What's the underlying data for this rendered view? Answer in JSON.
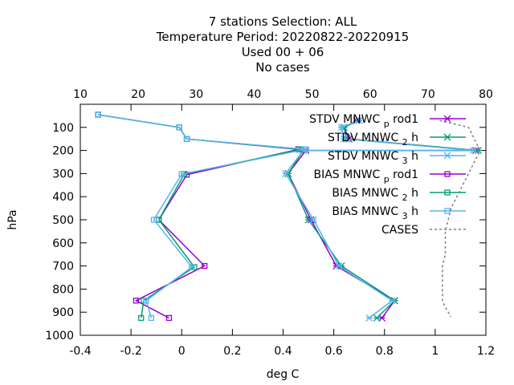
{
  "chart_data": {
    "type": "line",
    "title_lines": [
      "7 stations Selection: ALL",
      "Temperature  Period: 20220822-20220915",
      "Used  00 + 06",
      "No cases"
    ],
    "xlabel": "deg C",
    "ylabel": "hPa",
    "xlim": [
      -0.4,
      1.2
    ],
    "ylim": [
      1000,
      0
    ],
    "x_ticks": [
      "-0.4",
      "-0.2",
      "0",
      "0.2",
      "0.4",
      "0.6",
      "0.8",
      "1",
      "1.2"
    ],
    "y_ticks": [
      "100",
      "200",
      "300",
      "400",
      "500",
      "600",
      "700",
      "800",
      "900",
      "1000"
    ],
    "x2_ticks": [
      "10",
      "20",
      "30",
      "40",
      "50",
      "60",
      "70",
      "80"
    ],
    "x2lim": [
      10,
      80
    ],
    "grid": false,
    "legend_position": "top-right",
    "series": [
      {
        "name": "STDV MNWC_p_rod1",
        "legend_main": "STDV MNWC",
        "legend_sub": "p",
        "legend_tail": "rod1",
        "color": "#9400d3",
        "marker": "asterisk",
        "points": [
          [
            0.69,
            70
          ],
          [
            0.64,
            100
          ],
          [
            0.66,
            150
          ],
          [
            1.16,
            200
          ],
          [
            0.49,
            200
          ],
          [
            0.42,
            300
          ],
          [
            0.51,
            500
          ],
          [
            0.61,
            700
          ],
          [
            0.84,
            850
          ],
          [
            0.79,
            925
          ]
        ]
      },
      {
        "name": "STDV MNWC_2_h",
        "legend_main": "STDV MNWC",
        "legend_sub": "2",
        "legend_tail": "h",
        "color": "#009e73",
        "marker": "asterisk",
        "points": [
          [
            0.7,
            70
          ],
          [
            0.64,
            100
          ],
          [
            0.65,
            150
          ],
          [
            1.17,
            200
          ],
          [
            0.48,
            200
          ],
          [
            0.42,
            300
          ],
          [
            0.5,
            500
          ],
          [
            0.63,
            700
          ],
          [
            0.84,
            850
          ],
          [
            0.77,
            925
          ]
        ]
      },
      {
        "name": "STDV MNWC_3_h",
        "legend_main": "STDV MNWC",
        "legend_sub": "3",
        "legend_tail": "h",
        "color": "#56b4e9",
        "marker": "asterisk",
        "points": [
          [
            0.7,
            70
          ],
          [
            0.63,
            100
          ],
          [
            0.64,
            150
          ],
          [
            1.15,
            200
          ],
          [
            0.48,
            200
          ],
          [
            0.41,
            300
          ],
          [
            0.52,
            500
          ],
          [
            0.62,
            700
          ],
          [
            0.83,
            850
          ],
          [
            0.74,
            925
          ]
        ]
      },
      {
        "name": "BIAS MNWC_p_rod1",
        "legend_main": "BIAS MNWC",
        "legend_sub": "p",
        "legend_tail": "rod1",
        "color": "#9400d3",
        "marker": "square",
        "points": [
          [
            -0.33,
            45
          ],
          [
            -0.01,
            100
          ],
          [
            0.02,
            150
          ],
          [
            0.46,
            195
          ],
          [
            0.02,
            305
          ],
          [
            -0.09,
            500
          ],
          [
            0.09,
            700
          ],
          [
            -0.18,
            850
          ],
          [
            -0.05,
            925
          ]
        ]
      },
      {
        "name": "BIAS MNWC_2_h",
        "legend_main": "BIAS MNWC",
        "legend_sub": "2",
        "legend_tail": "h",
        "color": "#009e73",
        "marker": "square",
        "points": [
          [
            -0.33,
            45
          ],
          [
            -0.01,
            100
          ],
          [
            0.02,
            150
          ],
          [
            0.47,
            195
          ],
          [
            0.01,
            302
          ],
          [
            -0.09,
            500
          ],
          [
            0.05,
            705
          ],
          [
            -0.15,
            850
          ],
          [
            -0.16,
            925
          ]
        ]
      },
      {
        "name": "BIAS MNWC_3_h",
        "legend_main": "BIAS MNWC",
        "legend_sub": "3",
        "legend_tail": "h",
        "color": "#56b4e9",
        "marker": "square",
        "points": [
          [
            -0.33,
            45
          ],
          [
            -0.01,
            100
          ],
          [
            0.02,
            150
          ],
          [
            0.49,
            195
          ],
          [
            0.0,
            302
          ],
          [
            -0.11,
            500
          ],
          [
            0.04,
            705
          ],
          [
            -0.14,
            850
          ],
          [
            -0.12,
            925
          ]
        ]
      },
      {
        "name": "CASES",
        "legend_main": "CASES",
        "legend_sub": "",
        "legend_tail": "",
        "color": "#808080",
        "marker": "none",
        "dashed": true,
        "axis": "x2",
        "points": [
          [
            72,
            70
          ],
          [
            77,
            100
          ],
          [
            78,
            150
          ],
          [
            79,
            200
          ],
          [
            78,
            250
          ],
          [
            77,
            300
          ],
          [
            76,
            350
          ],
          [
            75,
            400
          ],
          [
            74,
            450
          ],
          [
            73.5,
            500
          ],
          [
            73,
            550
          ],
          [
            73,
            600
          ],
          [
            73,
            650
          ],
          [
            72.5,
            700
          ],
          [
            72.5,
            750
          ],
          [
            72.5,
            800
          ],
          [
            72.5,
            850
          ],
          [
            73,
            880
          ],
          [
            74,
            920
          ]
        ]
      }
    ]
  }
}
